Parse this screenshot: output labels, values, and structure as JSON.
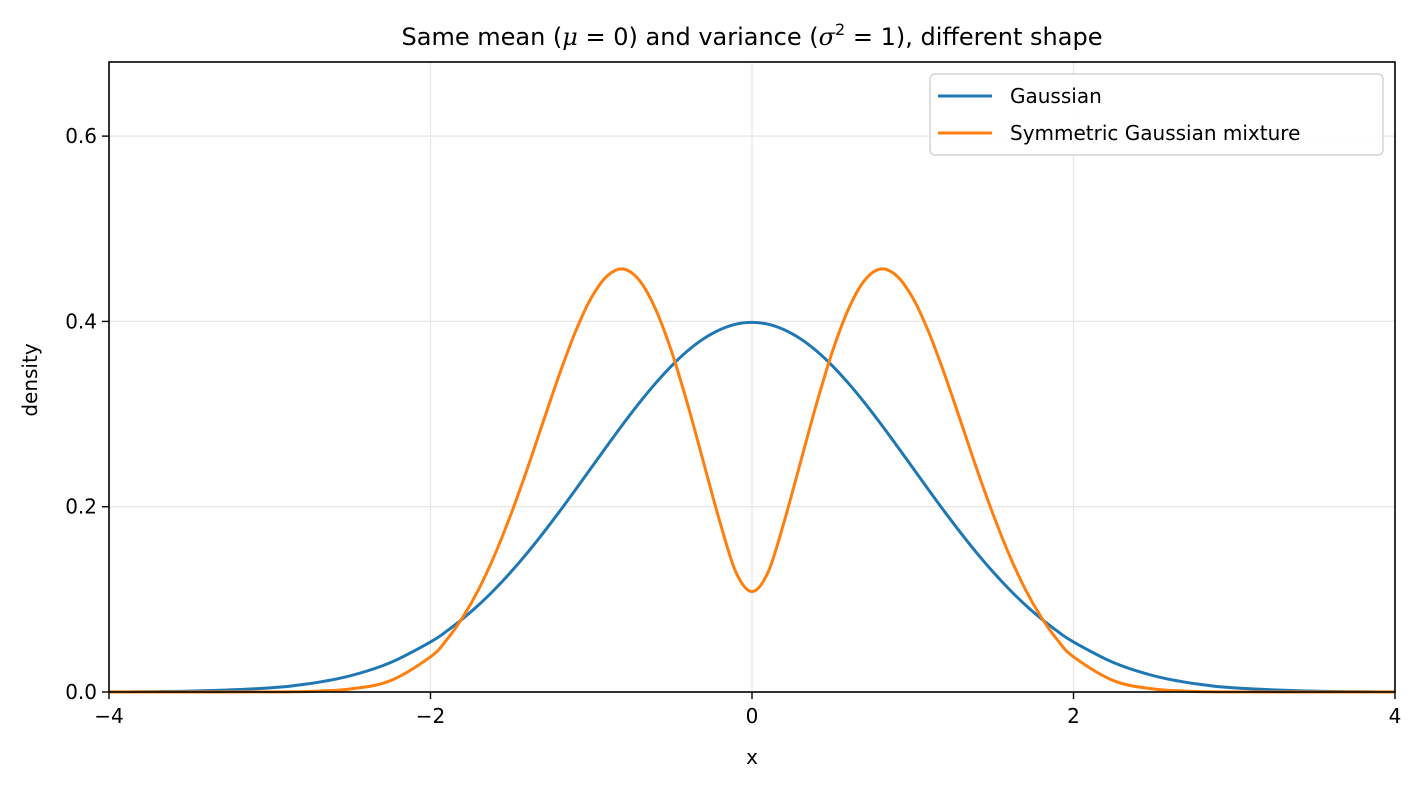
{
  "chart_data": {
    "type": "line",
    "title": {
      "prefix": "Same mean (",
      "mean_symbol": "μ",
      "mean_eq": " = 0) and variance (",
      "var_symbol": "σ",
      "var_sup": "2",
      "var_eq": " = 1), different shape"
    },
    "xlabel": "x",
    "ylabel": "density",
    "xlim": [
      -4,
      4
    ],
    "ylim": [
      0,
      0.68
    ],
    "x_ticks": [
      -4,
      -2,
      0,
      2,
      4
    ],
    "x_tick_labels": [
      "−4",
      "−2",
      "0",
      "2",
      "4"
    ],
    "y_ticks": [
      0.0,
      0.2,
      0.4,
      0.6
    ],
    "y_tick_labels": [
      "0.0",
      "0.2",
      "0.4",
      "0.6"
    ],
    "grid": true,
    "legend_position": "top-right",
    "x": [
      -4.0,
      -3.5,
      -3.0,
      -2.75,
      -2.5,
      -2.25,
      -2.0,
      -1.9,
      -1.8,
      -1.7,
      -1.6,
      -1.5,
      -1.4,
      -1.3,
      -1.2,
      -1.1,
      -1.0,
      -0.9,
      -0.8,
      -0.7,
      -0.6,
      -0.5,
      -0.4,
      -0.3,
      -0.2,
      -0.1,
      0.0,
      0.1,
      0.2,
      0.3,
      0.4,
      0.5,
      0.6,
      0.7,
      0.8,
      0.9,
      1.0,
      1.1,
      1.2,
      1.3,
      1.4,
      1.5,
      1.6,
      1.7,
      1.8,
      1.9,
      2.0,
      2.25,
      2.5,
      2.75,
      3.0,
      3.5,
      4.0
    ],
    "series": [
      {
        "name": "Gaussian",
        "color": "#1f77b4",
        "values": [
          0.0001,
          0.0009,
          0.0044,
          0.0091,
          0.0175,
          0.0317,
          0.054,
          0.0656,
          0.079,
          0.094,
          0.1109,
          0.1295,
          0.1497,
          0.1714,
          0.1942,
          0.2179,
          0.242,
          0.2661,
          0.2897,
          0.3123,
          0.3332,
          0.3521,
          0.3683,
          0.3814,
          0.391,
          0.397,
          0.3989,
          0.397,
          0.391,
          0.3814,
          0.3683,
          0.3521,
          0.3332,
          0.3123,
          0.2897,
          0.2661,
          0.242,
          0.2179,
          0.1942,
          0.1714,
          0.1497,
          0.1295,
          0.1109,
          0.094,
          0.079,
          0.0656,
          0.054,
          0.0317,
          0.0175,
          0.0091,
          0.0044,
          0.0009,
          0.0001
        ]
      },
      {
        "name": "Symmetric Gaussian mixture",
        "color": "#ff7f0e",
        "values": [
          0.0,
          0.0,
          0.0001,
          0.0007,
          0.0032,
          0.0122,
          0.038,
          0.0562,
          0.0805,
          0.1109,
          0.1482,
          0.1917,
          0.2399,
          0.2912,
          0.3419,
          0.3882,
          0.4254,
          0.4492,
          0.4566,
          0.4442,
          0.4133,
          0.3674,
          0.3102,
          0.2469,
          0.1838,
          0.1293,
          0.1085,
          0.1293,
          0.1838,
          0.2469,
          0.3102,
          0.3674,
          0.4133,
          0.4442,
          0.4566,
          0.4492,
          0.4254,
          0.3882,
          0.3419,
          0.2912,
          0.2399,
          0.1917,
          0.1482,
          0.1109,
          0.0805,
          0.0562,
          0.038,
          0.0122,
          0.0032,
          0.0007,
          0.0001,
          0.0,
          0.0
        ]
      }
    ]
  }
}
